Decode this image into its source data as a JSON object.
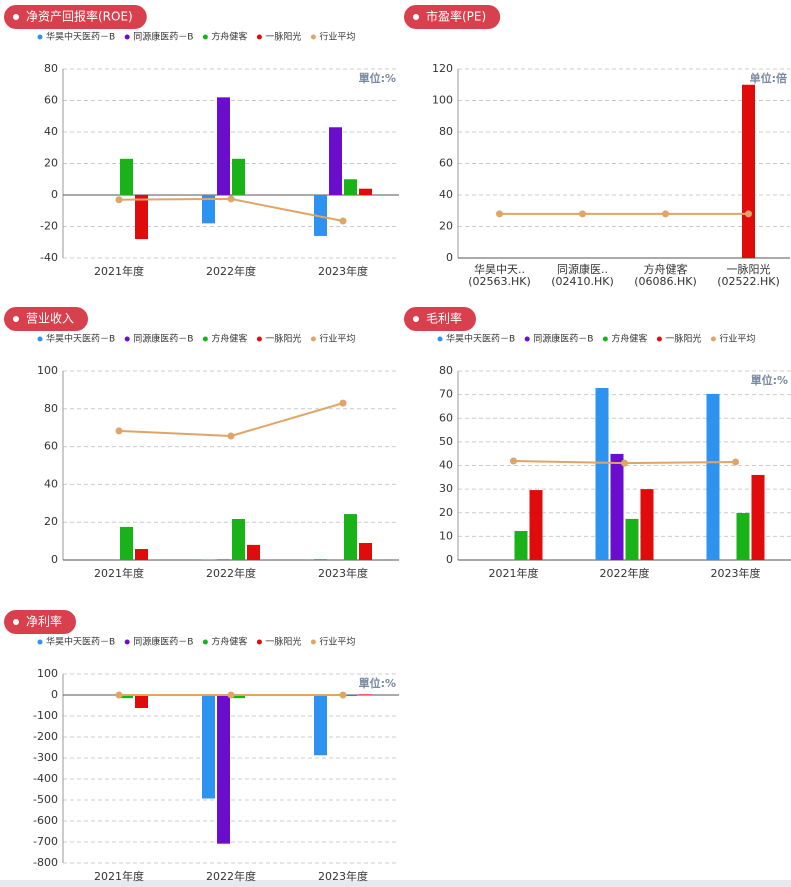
{
  "chart_data": [
    {
      "type": "bar",
      "title": "净资产回报率(ROE)",
      "unit": "單位:%",
      "legend": "top",
      "categories": [
        "2021年度",
        "2022年度",
        "2023年度"
      ],
      "series": [
        {
          "name": "华昊中天医药－B",
          "color": "#2e93f0",
          "values": [
            null,
            -18,
            -26
          ]
        },
        {
          "name": "同源康医药－B",
          "color": "#6a0dcc",
          "values": [
            null,
            62,
            43
          ]
        },
        {
          "name": "方舟健客",
          "color": "#19b319",
          "values": [
            23,
            23,
            10
          ]
        },
        {
          "name": "一脉阳光",
          "color": "#e00b0b",
          "values": [
            -28,
            null,
            4
          ]
        },
        {
          "name": "行业平均",
          "color": "#e0a468",
          "type": "line",
          "values": [
            -3,
            -2.5,
            -16.5
          ]
        }
      ],
      "ylim": [
        -40,
        80
      ],
      "yticks": [
        -40,
        -20,
        0,
        20,
        40,
        60,
        80
      ],
      "grid": true
    },
    {
      "type": "bar",
      "title": "市盈率(PE)",
      "unit": "单位:倍",
      "categories": [
        [
          "华昊中天..",
          "(02563.HK)"
        ],
        [
          "同源康医..",
          "(02410.HK)"
        ],
        [
          "方舟健客",
          "(06086.HK)"
        ],
        [
          "一脉阳光",
          "(02522.HK)"
        ]
      ],
      "series": [
        {
          "color": "#e00b0b",
          "values": [
            null,
            null,
            null,
            110
          ]
        },
        {
          "color": "#e0a468",
          "type": "line",
          "values": [
            28,
            28,
            28,
            28
          ]
        }
      ],
      "ylim": [
        0,
        120
      ],
      "yticks": [
        0,
        20,
        40,
        60,
        80,
        100,
        120
      ],
      "grid": true
    },
    {
      "type": "bar",
      "title": "营业收入",
      "legend": "top",
      "categories": [
        "2021年度",
        "2022年度",
        "2023年度"
      ],
      "series": [
        {
          "name": "华昊中天医药－B",
          "color": "#2e93f0",
          "values": [
            null,
            0.3,
            0.5
          ]
        },
        {
          "name": "同源康医药－B",
          "color": "#6a0dcc",
          "values": [
            null,
            0.3,
            null
          ]
        },
        {
          "name": "方舟健客",
          "color": "#19b319",
          "values": [
            17.5,
            21.7,
            24.3
          ]
        },
        {
          "name": "一脉阳光",
          "color": "#e00b0b",
          "values": [
            5.8,
            8,
            9
          ]
        },
        {
          "name": "行业平均",
          "color": "#e0a468",
          "type": "line",
          "values": [
            68.3,
            65.6,
            83
          ]
        }
      ],
      "ylim": [
        0,
        100
      ],
      "yticks": [
        0,
        20,
        40,
        60,
        80,
        100
      ],
      "grid": true
    },
    {
      "type": "bar",
      "title": "毛利率",
      "unit": "單位:%",
      "legend": "top",
      "categories": [
        "2021年度",
        "2022年度",
        "2023年度"
      ],
      "series": [
        {
          "name": "华昊中天医药－B",
          "color": "#2e93f0",
          "values": [
            null,
            72.8,
            70.3
          ]
        },
        {
          "name": "同源康医药－B",
          "color": "#6a0dcc",
          "values": [
            null,
            44.9,
            null
          ]
        },
        {
          "name": "方舟健客",
          "color": "#19b319",
          "values": [
            12.3,
            17.4,
            19.9
          ]
        },
        {
          "name": "一脉阳光",
          "color": "#e00b0b",
          "values": [
            29.6,
            30,
            36
          ]
        },
        {
          "name": "行业平均",
          "color": "#e0a468",
          "type": "line",
          "values": [
            41.9,
            41,
            41.5
          ]
        }
      ],
      "ylim": [
        0,
        80
      ],
      "yticks": [
        0,
        10,
        20,
        30,
        40,
        50,
        60,
        70,
        80
      ],
      "grid": true
    },
    {
      "type": "bar",
      "title": "净利率",
      "unit": "單位:%",
      "legend": "top",
      "categories": [
        "2021年度",
        "2022年度",
        "2023年度"
      ],
      "series": [
        {
          "name": "华昊中天医药－B",
          "color": "#2e93f0",
          "values": [
            null,
            -493,
            -287
          ]
        },
        {
          "name": "同源康医药－B",
          "color": "#6a0dcc",
          "values": [
            null,
            -708,
            null
          ]
        },
        {
          "name": "方舟健客",
          "color": "#19b319",
          "values": [
            -15,
            -15,
            -5
          ]
        },
        {
          "name": "一脉阳光",
          "color": "#e00b0b",
          "values": [
            -62,
            null,
            3
          ]
        },
        {
          "name": "行业平均",
          "color": "#e0a468",
          "type": "line",
          "values": [
            0,
            0,
            0
          ]
        }
      ],
      "ylim": [
        -800,
        100
      ],
      "yticks": [
        -800,
        -700,
        -600,
        -500,
        -400,
        -300,
        -200,
        -100,
        0,
        100
      ],
      "grid": true
    }
  ]
}
